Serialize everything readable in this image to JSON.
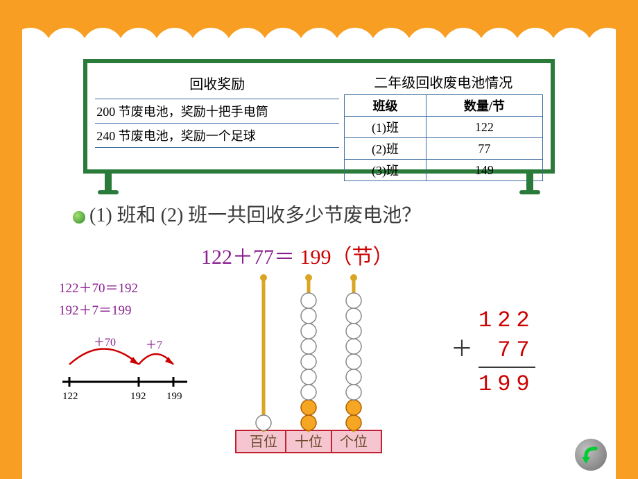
{
  "colors": {
    "orange": "#f89e22",
    "board_green": "#2a7a3a",
    "table_border": "#3a6aa0",
    "purple": "#8a2090",
    "red": "#cc0000",
    "text": "#3a3a3a",
    "bullet_light": "#a8e070",
    "bullet_dark": "#2a8a2a",
    "abacus_rod": "#daa520",
    "abacus_bead_white": "#ffffff",
    "abacus_bead_orange": "#f5a623",
    "abacus_base_pink": "#f5c6d0",
    "abacus_base_border": "#c02030"
  },
  "board": {
    "reward_title": "回收奖励",
    "reward_rows": [
      "200 节废电池，奖励十把手电筒",
      "240 节废电池，奖励一个足球"
    ],
    "recycle_title": "二年级回收废电池情况",
    "recycle_headers": [
      "班级",
      "数量/节"
    ],
    "recycle_rows": [
      [
        "(1)班",
        "122"
      ],
      [
        "(2)班",
        "77"
      ],
      [
        "(3)班",
        "149"
      ]
    ]
  },
  "question": {
    "text": "(1) 班和 (2) 班一共回收多少节废电池？"
  },
  "equation": {
    "expr": "122＋77＝",
    "answer": "199",
    "unit": "（节）"
  },
  "steps": {
    "line1": "122＋70＝192",
    "line2": "192＋7＝199"
  },
  "numline": {
    "start": 122,
    "jump1_label": "＋70",
    "mid": 192,
    "jump2_label": "＋7",
    "end": 199,
    "line_color": "#000000",
    "arc_color": "#cc0000",
    "label_color": "#8a2090",
    "ticks": [
      "122",
      "192",
      "199"
    ]
  },
  "abacus": {
    "columns": [
      {
        "label": "百位",
        "white_beads": 1,
        "orange_beads": 0
      },
      {
        "label": "十位",
        "white_beads": 7,
        "orange_beads": 2
      },
      {
        "label": "个位",
        "white_beads": 7,
        "orange_beads": 2
      }
    ],
    "bead_radius": 11
  },
  "vertical": {
    "line1": "122",
    "line2": "77",
    "plus": "＋",
    "result": "199"
  },
  "nav": {
    "direction": "back",
    "arrow_color": "#00cc33"
  }
}
